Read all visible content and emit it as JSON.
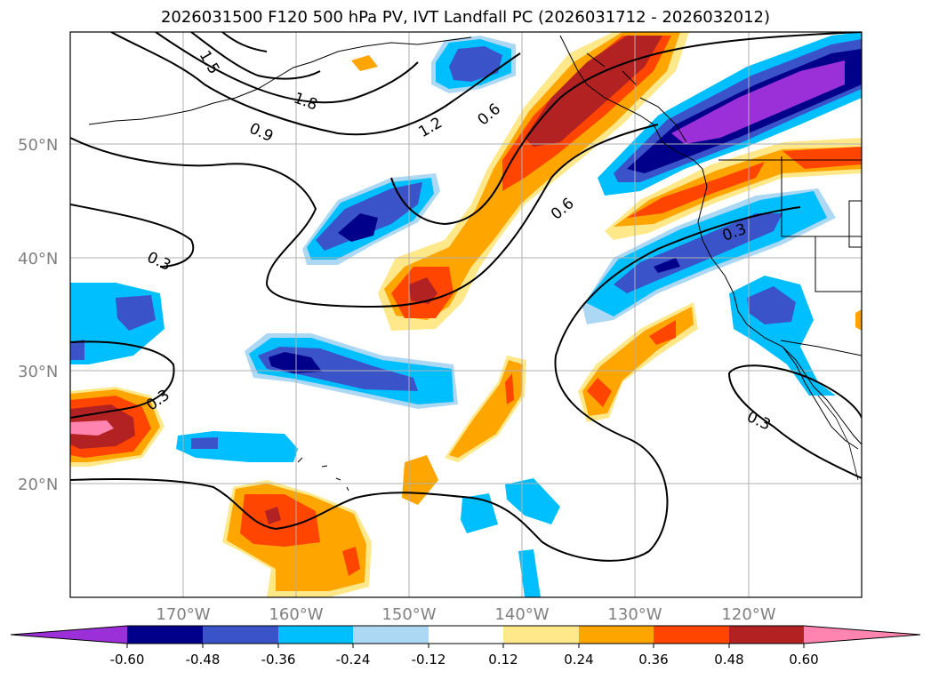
{
  "title": "2026031500 F120 500 hPa PV, IVT Landfall PC (2026031712 - 2026032012)",
  "lat_labels": [
    "50°N",
    "40°N",
    "30°N",
    "20°N"
  ],
  "lon_labels": [
    "170°W",
    "160°W",
    "150°W",
    "140°W",
    "130°W",
    "120°W"
  ],
  "contour_labels": [
    "1.5",
    "1.8",
    "0.9",
    "1.2",
    "0.6",
    "0.6",
    "0.3",
    "0.3",
    "0.3",
    "0.3"
  ],
  "colorbar": {
    "ticks": [
      "-0.60",
      "-0.48",
      "-0.36",
      "-0.24",
      "-0.12",
      "0.12",
      "0.24",
      "0.36",
      "0.48",
      "0.60"
    ],
    "colors": [
      "#9b30d9",
      "#00008b",
      "#3a53c9",
      "#00bfff",
      "#add8f4",
      "#ffffff",
      "#ffe88a",
      "#ffa500",
      "#ff4500",
      "#b22222",
      "#ff85b0"
    ]
  },
  "colors": {
    "pv_contour": "#000000",
    "grid": "#b0b0b0",
    "coast": "#000000",
    "axis_label": "#808080"
  }
}
